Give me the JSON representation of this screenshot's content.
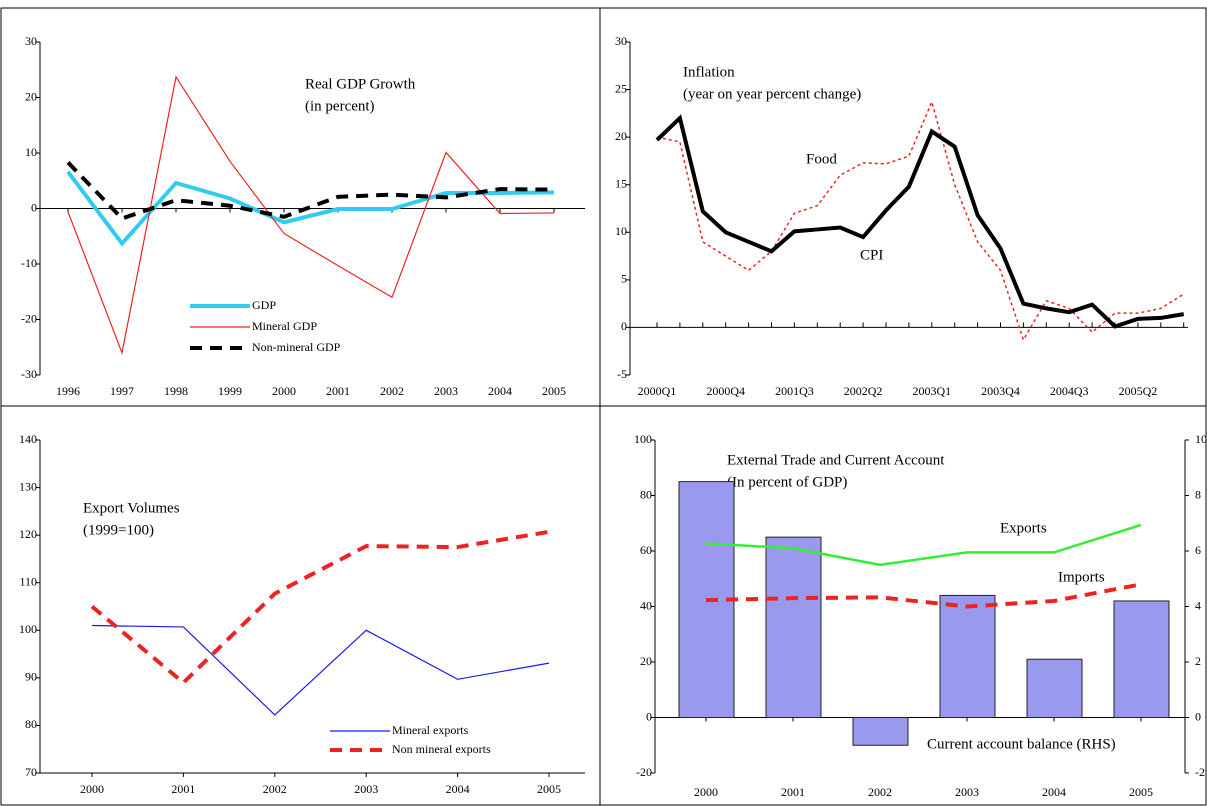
{
  "chart_data": [
    {
      "type": "line",
      "title": "Real GDP Growth",
      "subtitle": "(in percent)",
      "categories": [
        "1996",
        "1997",
        "1998",
        "1999",
        "2000",
        "2001",
        "2002",
        "2003",
        "2004",
        "2005"
      ],
      "ylim": [
        -30,
        30
      ],
      "yticks": [
        -30,
        -20,
        -10,
        0,
        10,
        20,
        30
      ],
      "legend": "lower center",
      "series": [
        {
          "name": "GDP",
          "color": "#33ccee",
          "line_style": "thick",
          "values": [
            6.6,
            -6.3,
            4.6,
            1.8,
            -2.5,
            -0.1,
            -0.1,
            2.8,
            2.8,
            2.9
          ]
        },
        {
          "name": "Mineral GDP",
          "color": "#ee2222",
          "line_style": "thin",
          "values": [
            -0.6,
            -26,
            23.7,
            8.5,
            -4.5,
            -10.3,
            -16,
            10.1,
            -0.9,
            -0.8
          ]
        },
        {
          "name": "Non-mineral GDP",
          "color": "#000000",
          "line_style": "dashed",
          "values": [
            8.3,
            -1.8,
            1.5,
            0.5,
            -1.5,
            2.1,
            2.5,
            2,
            3.5,
            3.4
          ]
        }
      ]
    },
    {
      "type": "line",
      "title": "Inflation",
      "subtitle": "(year on year percent change)",
      "categories": [
        "2000Q1",
        null,
        null,
        "2000Q4",
        null,
        null,
        "2001Q3",
        null,
        null,
        "2002Q2",
        null,
        null,
        "2003Q1",
        null,
        null,
        "2003Q4",
        null,
        null,
        "2004Q3",
        null,
        null,
        "2005Q2",
        null,
        null
      ],
      "ylim": [
        -5,
        30
      ],
      "yticks": [
        -5,
        0,
        5,
        10,
        15,
        20,
        25,
        30
      ],
      "series_labels": "inline",
      "series": [
        {
          "name": "Food",
          "color": "#ee2222",
          "line_style": "dotted",
          "values": [
            20,
            19.5,
            9,
            7.5,
            6,
            8,
            12,
            12.8,
            16,
            17.3,
            17.2,
            18,
            23.7,
            15,
            9,
            6,
            -1.3,
            2.8,
            2,
            -0.5,
            1.5,
            1.5,
            2,
            3.5
          ]
        },
        {
          "name": "CPI",
          "color": "#000000",
          "line_style": "thick",
          "values": [
            19.7,
            22,
            12.2,
            10,
            9,
            8,
            10.1,
            10.3,
            10.5,
            9.5,
            12.3,
            14.8,
            20.6,
            19,
            11.8,
            8.3,
            2.5,
            2,
            1.6,
            2.4,
            0.1,
            0.9,
            1,
            1.4
          ]
        }
      ]
    },
    {
      "type": "line",
      "title": "Export Volumes",
      "subtitle": "(1999=100)",
      "categories": [
        "2000",
        "2001",
        "2002",
        "2003",
        "2004",
        "2005"
      ],
      "ylim": [
        70,
        140
      ],
      "yticks": [
        70,
        80,
        90,
        100,
        110,
        120,
        130,
        140
      ],
      "legend": "lower right",
      "series": [
        {
          "name": "Mineral exports",
          "color": "#1a1aee",
          "line_style": "thin",
          "values": [
            101,
            100.7,
            82.2,
            100,
            89.7,
            93.1
          ]
        },
        {
          "name": "Non mineral exports",
          "color": "#ee2222",
          "line_style": "dashed",
          "values": [
            105,
            89,
            107.7,
            117.7,
            117.5,
            120.7
          ]
        }
      ]
    },
    {
      "type": "bar",
      "title": "External Trade and Current Account",
      "subtitle": "(In percent of GDP)",
      "categories": [
        "2000",
        "2001",
        "2002",
        "2003",
        "2004",
        "2005"
      ],
      "ylim": [
        -20,
        100
      ],
      "yticks": [
        -20,
        0,
        20,
        40,
        60,
        80,
        100
      ],
      "y2lim": [
        -2,
        10
      ],
      "y2ticks": [
        -2,
        0,
        2,
        4,
        6,
        8,
        10
      ],
      "series_labels": "inline",
      "series": [
        {
          "name": "Exports",
          "type": "line",
          "color": "#33ee33",
          "line_style": "medium",
          "values": [
            62.7,
            61,
            55,
            59.5,
            59.5,
            69.4
          ]
        },
        {
          "name": "Imports",
          "type": "line",
          "color": "#ee2222",
          "line_style": "dashed",
          "values": [
            42.3,
            43,
            43.3,
            40,
            42,
            48
          ]
        },
        {
          "name": "Current account balance (RHS)",
          "type": "bar",
          "axis": "y2",
          "color": "#9999ee",
          "values": [
            8.5,
            6.5,
            -1,
            4.4,
            2.1,
            4.2
          ]
        }
      ]
    }
  ]
}
